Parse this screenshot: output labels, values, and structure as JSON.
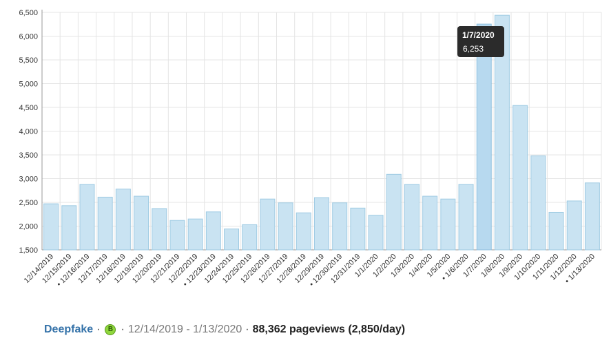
{
  "chart_data": {
    "type": "bar",
    "categories": [
      "12/14/2019",
      "12/15/2019",
      "12/16/2019",
      "12/17/2019",
      "12/18/2019",
      "12/19/2019",
      "12/20/2019",
      "12/21/2019",
      "12/22/2019",
      "12/23/2019",
      "12/24/2019",
      "12/25/2019",
      "12/26/2019",
      "12/27/2019",
      "12/28/2019",
      "12/29/2019",
      "12/30/2019",
      "12/31/2019",
      "1/1/2020",
      "1/2/2020",
      "1/3/2020",
      "1/4/2020",
      "1/5/2020",
      "1/6/2020",
      "1/7/2020",
      "1/8/2020",
      "1/9/2020",
      "1/10/2020",
      "1/11/2020",
      "1/12/2020",
      "1/13/2020"
    ],
    "category_labels": [
      "12/14/2019",
      "12/15/2019",
      "• 12/16/2019",
      "12/17/2019",
      "12/18/2019",
      "12/19/2019",
      "12/20/2019",
      "12/21/2019",
      "12/22/2019",
      "• 12/23/2019",
      "12/24/2019",
      "12/25/2019",
      "12/26/2019",
      "12/27/2019",
      "12/28/2019",
      "12/29/2019",
      "• 12/30/2019",
      "12/31/2019",
      "1/1/2020",
      "1/2/2020",
      "1/3/2020",
      "1/4/2020",
      "1/5/2020",
      "• 1/6/2020",
      "1/7/2020",
      "1/8/2020",
      "1/9/2020",
      "1/10/2020",
      "1/11/2020",
      "1/12/2020",
      "• 1/13/2020"
    ],
    "values": [
      2470,
      2430,
      2880,
      2610,
      2780,
      2630,
      2370,
      2120,
      2150,
      2300,
      1940,
      2030,
      2570,
      2490,
      2280,
      2600,
      2490,
      2380,
      2230,
      3090,
      2880,
      2630,
      2570,
      2880,
      6253,
      6440,
      4540,
      3480,
      2290,
      2530,
      2910
    ],
    "ylim": [
      1500,
      6500
    ],
    "yticks": [
      1500,
      2000,
      2500,
      3000,
      3500,
      4000,
      4500,
      5000,
      5500,
      6000,
      6500
    ],
    "ytick_labels": [
      "1,500",
      "2,000",
      "2,500",
      "3,000",
      "3,500",
      "4,000",
      "4,500",
      "5,000",
      "5,500",
      "6,000",
      "6,500"
    ],
    "grid": true,
    "tooltip": {
      "category": "1/7/2020",
      "value_label": "6,253"
    }
  },
  "footer": {
    "article": "Deepfake",
    "badge": "B",
    "date_range": "12/14/2019 - 1/13/2020",
    "pageviews": "88,362 pageviews (2,850/day)",
    "separator": "·"
  },
  "colors": {
    "bar_fill": "#c9e3f2",
    "bar_stroke": "#9fcbe3",
    "link": "#3371a8",
    "badge": "#8fd63d"
  }
}
